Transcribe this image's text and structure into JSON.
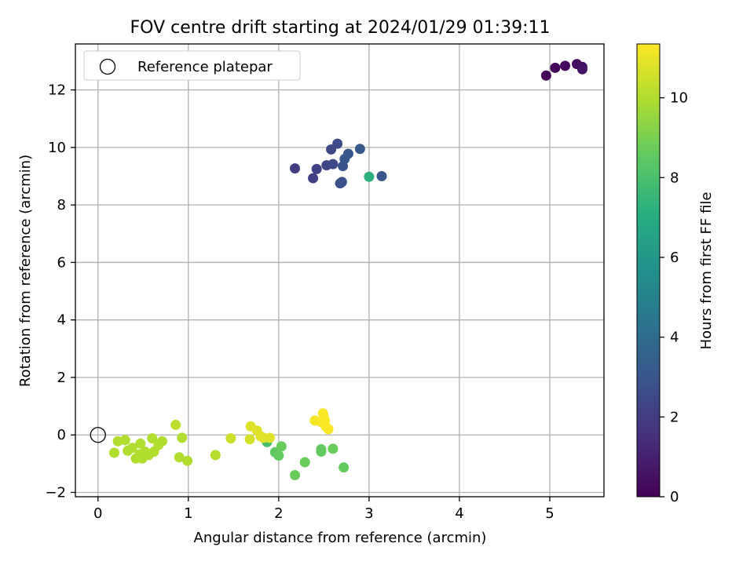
{
  "chart_data": {
    "type": "scatter",
    "title": "FOV centre drift starting at 2024/01/29 01:39:11",
    "xlabel": "Angular distance from reference (arcmin)",
    "ylabel": "Rotation from reference (arcmin)",
    "xlim": [
      -0.25,
      5.6
    ],
    "ylim": [
      -2.15,
      13.6
    ],
    "xticks": [
      "0",
      "1",
      "2",
      "3",
      "4",
      "5"
    ],
    "yticks": [
      "−2",
      "0",
      "2",
      "4",
      "6",
      "8",
      "10",
      "12"
    ],
    "grid": true,
    "legend": {
      "position": "top-left",
      "entries": [
        "Reference platepar"
      ]
    },
    "colorbar": {
      "label": "Hours from first FF file",
      "range": [
        0,
        11.35
      ],
      "ticks": [
        "0",
        "2",
        "4",
        "6",
        "8",
        "10"
      ],
      "colormap": "viridis"
    },
    "reference": {
      "x": 0,
      "y": 0
    },
    "points": [
      {
        "x": 4.96,
        "y": 12.5,
        "c": 0.1
      },
      {
        "x": 5.06,
        "y": 12.77,
        "c": 0.2
      },
      {
        "x": 5.17,
        "y": 12.84,
        "c": 0.3
      },
      {
        "x": 5.3,
        "y": 12.9,
        "c": 0.4
      },
      {
        "x": 5.36,
        "y": 12.8,
        "c": 0.5
      },
      {
        "x": 5.36,
        "y": 12.72,
        "c": 0.6
      },
      {
        "x": 2.18,
        "y": 9.27,
        "c": 2.0
      },
      {
        "x": 2.38,
        "y": 8.93,
        "c": 2.1
      },
      {
        "x": 2.42,
        "y": 9.25,
        "c": 2.2
      },
      {
        "x": 2.53,
        "y": 9.38,
        "c": 2.3
      },
      {
        "x": 2.58,
        "y": 9.93,
        "c": 2.4
      },
      {
        "x": 2.6,
        "y": 9.42,
        "c": 2.5
      },
      {
        "x": 2.65,
        "y": 10.13,
        "c": 2.6
      },
      {
        "x": 2.68,
        "y": 8.75,
        "c": 2.7
      },
      {
        "x": 2.7,
        "y": 8.8,
        "c": 2.8
      },
      {
        "x": 2.71,
        "y": 9.35,
        "c": 2.9
      },
      {
        "x": 2.73,
        "y": 9.6,
        "c": 3.0
      },
      {
        "x": 2.77,
        "y": 9.78,
        "c": 3.1
      },
      {
        "x": 2.9,
        "y": 9.95,
        "c": 3.2
      },
      {
        "x": 3.14,
        "y": 9.0,
        "c": 3.0
      },
      {
        "x": 3.0,
        "y": 8.98,
        "c": 7.2
      },
      {
        "x": 1.87,
        "y": -0.25,
        "c": 8.0
      },
      {
        "x": 1.96,
        "y": -0.6,
        "c": 8.5
      },
      {
        "x": 2.0,
        "y": -0.72,
        "c": 8.6
      },
      {
        "x": 2.03,
        "y": -0.4,
        "c": 8.7
      },
      {
        "x": 2.18,
        "y": -1.4,
        "c": 8.7
      },
      {
        "x": 2.29,
        "y": -0.95,
        "c": 8.7
      },
      {
        "x": 2.47,
        "y": -0.5,
        "c": 8.6
      },
      {
        "x": 2.47,
        "y": -0.58,
        "c": 8.6
      },
      {
        "x": 2.6,
        "y": -0.48,
        "c": 8.7
      },
      {
        "x": 2.72,
        "y": -1.13,
        "c": 8.6
      },
      {
        "x": 0.18,
        "y": -0.62,
        "c": 10.0
      },
      {
        "x": 0.22,
        "y": -0.22,
        "c": 10.0
      },
      {
        "x": 0.3,
        "y": -0.18,
        "c": 10.0
      },
      {
        "x": 0.33,
        "y": -0.55,
        "c": 10.0
      },
      {
        "x": 0.38,
        "y": -0.45,
        "c": 10.0
      },
      {
        "x": 0.42,
        "y": -0.82,
        "c": 10.0
      },
      {
        "x": 0.46,
        "y": -0.68,
        "c": 10.0
      },
      {
        "x": 0.47,
        "y": -0.3,
        "c": 10.0
      },
      {
        "x": 0.49,
        "y": -0.82,
        "c": 10.0
      },
      {
        "x": 0.52,
        "y": -0.58,
        "c": 10.0
      },
      {
        "x": 0.56,
        "y": -0.7,
        "c": 10.0
      },
      {
        "x": 0.6,
        "y": -0.12,
        "c": 10.0
      },
      {
        "x": 0.62,
        "y": -0.58,
        "c": 10.0
      },
      {
        "x": 0.67,
        "y": -0.35,
        "c": 10.0
      },
      {
        "x": 0.71,
        "y": -0.22,
        "c": 10.0
      },
      {
        "x": 0.86,
        "y": 0.35,
        "c": 10.2
      },
      {
        "x": 0.9,
        "y": -0.78,
        "c": 10.0
      },
      {
        "x": 0.93,
        "y": -0.1,
        "c": 10.0
      },
      {
        "x": 0.99,
        "y": -0.9,
        "c": 10.0
      },
      {
        "x": 1.3,
        "y": -0.7,
        "c": 10.1
      },
      {
        "x": 1.47,
        "y": -0.12,
        "c": 10.5
      },
      {
        "x": 1.68,
        "y": -0.15,
        "c": 10.6
      },
      {
        "x": 1.69,
        "y": 0.3,
        "c": 10.8
      },
      {
        "x": 1.76,
        "y": 0.15,
        "c": 10.8
      },
      {
        "x": 1.8,
        "y": -0.05,
        "c": 10.8
      },
      {
        "x": 1.83,
        "y": -0.1,
        "c": 10.8
      },
      {
        "x": 1.9,
        "y": -0.1,
        "c": 10.8
      },
      {
        "x": 2.4,
        "y": 0.5,
        "c": 11.2
      },
      {
        "x": 2.47,
        "y": 0.45,
        "c": 11.2
      },
      {
        "x": 2.49,
        "y": 0.75,
        "c": 11.3
      },
      {
        "x": 2.5,
        "y": 0.6,
        "c": 11.3
      },
      {
        "x": 2.51,
        "y": 0.5,
        "c": 11.3
      },
      {
        "x": 2.52,
        "y": 0.3,
        "c": 11.3
      },
      {
        "x": 2.55,
        "y": 0.2,
        "c": 11.3
      }
    ]
  }
}
